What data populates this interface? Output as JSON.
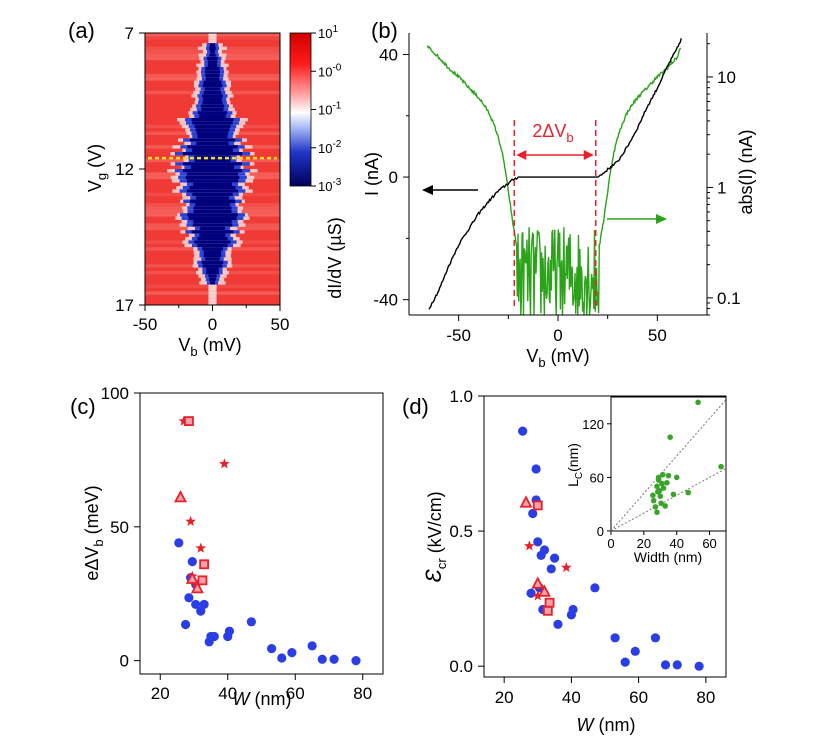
{
  "colors": {
    "black_curve": "#000000",
    "green_curve": "#2aa318",
    "red_marker": "#e8202a",
    "red_fill": "#f5a3a8",
    "blue_marker": "#2b3ee6",
    "green_marker": "#3aa32a",
    "yellow_dash": "#f0e020",
    "cmap_high": "#ff0000",
    "cmap_mid": "#ffffff",
    "cmap_low": "#00007a"
  },
  "chart_data": [
    {
      "panel": "(a)",
      "type": "heatmap",
      "xlabel": "V_b (mV)",
      "ylabel": "V_g (V)",
      "xlim": [
        -50,
        50
      ],
      "ylim": [
        17,
        7
      ],
      "xticks": [
        "-50",
        "0",
        "50"
      ],
      "yticks": [
        "7",
        "12",
        "17"
      ],
      "gap_envelope": {
        "vg": [
          7.4,
          8.5,
          9.5,
          10.5,
          11.5,
          12.0,
          12.5,
          13.5,
          14.5,
          15.5,
          16.2
        ],
        "half_width_mV": [
          2,
          6,
          12,
          18,
          22,
          26,
          22,
          20,
          15,
          8,
          3
        ]
      },
      "cut_line_vg": 11.6,
      "colorbar": {
        "label": "dI/dV (µS)",
        "ticks": [
          {
            "base": "10",
            "exp": "1"
          },
          {
            "base": "10",
            "exp": "-0"
          },
          {
            "base": "10",
            "exp": "-1"
          },
          {
            "base": "10",
            "exp": "-2"
          },
          {
            "base": "10",
            "exp": "-3"
          }
        ]
      }
    },
    {
      "panel": "(b)",
      "type": "line",
      "xlabel": "V_b (mV)",
      "ylabel_left": "I (nA)",
      "ylabel_right": "abs(I) (nA)",
      "xlim": [
        -75,
        75
      ],
      "ylim_left": [
        -45,
        47
      ],
      "ylim_right_log": [
        0.07,
        25
      ],
      "xticks": [
        "-50",
        "0",
        "50"
      ],
      "yticks_left": [
        "-40",
        "0",
        "40"
      ],
      "yticks_right": [
        "0.1",
        "1",
        "10"
      ],
      "gap_mV": [
        -20,
        20
      ],
      "annotation": "2ΔV_b",
      "series": [
        {
          "name": "I",
          "axis": "left",
          "x": [
            -65,
            -60,
            -55,
            -50,
            -45,
            -40,
            -35,
            -30,
            -25,
            -22,
            -20,
            20,
            22,
            25,
            30,
            35,
            40,
            45,
            50,
            55,
            60,
            62
          ],
          "y": [
            -43,
            -37,
            -29,
            -22,
            -17,
            -12,
            -8,
            -4.5,
            -2,
            -0.6,
            0,
            0,
            0.8,
            2.5,
            5,
            10,
            16,
            23,
            29,
            36,
            42,
            45
          ]
        },
        {
          "name": "abs(I)",
          "axis": "right",
          "x": [
            -66,
            -60,
            -55,
            -50,
            -45,
            -40,
            -35,
            -30,
            -27,
            -25,
            -23,
            -21,
            21,
            23,
            25,
            27,
            30,
            35,
            40,
            45,
            50,
            55,
            60,
            62
          ],
          "y": [
            19,
            15,
            12,
            10,
            8,
            6.5,
            4.8,
            2.8,
            1.6,
            0.9,
            0.5,
            0.3,
            0.3,
            0.5,
            0.9,
            1.6,
            2.8,
            4.8,
            6.5,
            8,
            10,
            12,
            15,
            19
          ]
        }
      ]
    },
    {
      "panel": "(c)",
      "type": "scatter",
      "xlabel_italic": "W",
      "xlabel_unit": " (nm)",
      "ylabel": "eΔV_b (meV)",
      "xlim": [
        14,
        86
      ],
      "ylim": [
        -5,
        100
      ],
      "xticks": [
        "20",
        "40",
        "60",
        "80"
      ],
      "yticks": [
        "0",
        "50",
        "100"
      ],
      "series": [
        {
          "name": "circles",
          "marker": "circle",
          "x": [
            25.5,
            27.5,
            28.5,
            29,
            29.5,
            30.5,
            30.5,
            32,
            33,
            34.5,
            35,
            36,
            40,
            40.5,
            47,
            53,
            56,
            59,
            65,
            68,
            71.5,
            78
          ],
          "y": [
            44,
            13.5,
            23.5,
            31,
            37,
            28.5,
            21,
            18.5,
            21,
            7,
            9,
            9,
            9,
            11,
            14.5,
            4.5,
            1,
            3,
            5.5,
            0.5,
            0.5,
            0
          ]
        },
        {
          "name": "stars",
          "marker": "star",
          "x": [
            27,
            29,
            29.5,
            32,
            39,
            30.5
          ],
          "y": [
            89.5,
            52,
            31.5,
            42,
            73.5,
            29
          ]
        },
        {
          "name": "squares",
          "marker": "square",
          "x": [
            28.5,
            32.5,
            33
          ],
          "y": [
            89.5,
            30,
            36
          ]
        },
        {
          "name": "triangles",
          "marker": "triangle",
          "x": [
            26,
            29.5,
            31
          ],
          "y": [
            61,
            30.5,
            27
          ]
        }
      ]
    },
    {
      "panel": "(d)",
      "type": "scatter",
      "xlabel_italic": "W",
      "xlabel_unit": " (nm)",
      "ylabel": "Ɛ_cr (kV/cm)",
      "xlim": [
        14,
        86
      ],
      "ylim": [
        -0.04,
        1.0
      ],
      "xticks": [
        "20",
        "40",
        "60",
        "80"
      ],
      "yticks": [
        "0.0",
        "0.5",
        "1.0"
      ],
      "series": [
        {
          "name": "circles",
          "marker": "circle",
          "x": [
            25.5,
            28,
            28.5,
            29.5,
            29.5,
            30,
            30.5,
            31,
            31.5,
            32,
            34,
            35,
            36,
            40,
            40.5,
            47,
            53,
            56,
            59,
            65,
            68,
            71.5,
            78
          ],
          "y": [
            0.87,
            0.27,
            0.565,
            0.615,
            0.73,
            0.46,
            0.29,
            0.41,
            0.21,
            0.43,
            0.36,
            0.4,
            0.155,
            0.19,
            0.21,
            0.29,
            0.105,
            0.015,
            0.055,
            0.105,
            0.005,
            0.005,
            0
          ]
        },
        {
          "name": "stars",
          "marker": "star",
          "x": [
            27.5,
            30,
            38.5
          ],
          "y": [
            0.445,
            0.26,
            0.365
          ]
        },
        {
          "name": "squares",
          "marker": "square",
          "x": [
            30,
            33,
            33.5
          ],
          "y": [
            0.595,
            0.205,
            0.235
          ]
        },
        {
          "name": "triangles",
          "marker": "triangle",
          "x": [
            26.5,
            30,
            32
          ],
          "y": [
            0.605,
            0.305,
            0.275
          ]
        }
      ]
    },
    {
      "panel": "(d) inset",
      "type": "scatter",
      "xlabel": "Width (nm)",
      "ylabel": "L_C(nm)",
      "xlim": [
        0,
        70
      ],
      "ylim": [
        0,
        150
      ],
      "xticks": [
        "0",
        "20",
        "40",
        "60"
      ],
      "yticks": [
        "0",
        "60",
        "120"
      ],
      "guide_slopes": [
        2.1,
        1.0
      ],
      "series": [
        {
          "name": "L_C",
          "marker": "circle",
          "x": [
            25.5,
            26,
            27,
            28,
            28,
            28.5,
            29,
            29,
            29.5,
            30,
            30.5,
            31,
            31.5,
            32,
            33,
            34,
            35,
            36,
            38,
            40,
            47,
            53,
            67
          ],
          "y": [
            40,
            34,
            27,
            21,
            50,
            44,
            57,
            60,
            45,
            39,
            31,
            53,
            63,
            48,
            28,
            54,
            62,
            105,
            41,
            60,
            43,
            144,
            72
          ]
        }
      ]
    }
  ]
}
